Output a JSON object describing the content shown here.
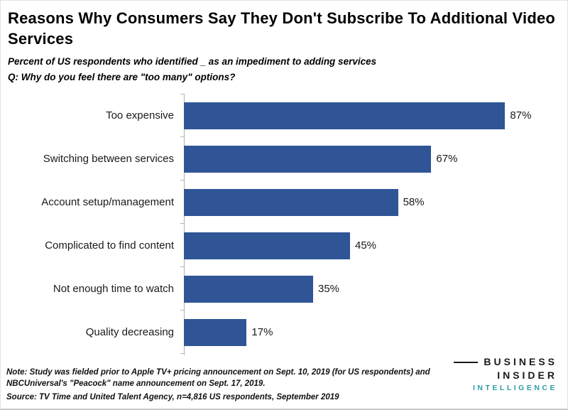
{
  "header": {
    "title": "Reasons Why Consumers Say They Don't Subscribe To Additional Video Services",
    "subtitle1": "Percent of US respondents who identified _ as an impediment to adding services",
    "subtitle2": "Q: Why do you feel there are \"too many\" options?"
  },
  "chart_data": {
    "type": "bar",
    "orientation": "horizontal",
    "title": "Reasons Why Consumers Say They Don't Subscribe To Additional Video Services",
    "xlabel": "",
    "ylabel": "",
    "xlim": [
      0,
      100
    ],
    "grid": false,
    "legend": "none",
    "bar_color": "#2F5597",
    "categories": [
      "Too expensive",
      "Switching between services",
      "Account setup/management",
      "Complicated to find content",
      "Not enough time to watch",
      "Quality decreasing"
    ],
    "values": [
      87,
      67,
      58,
      45,
      35,
      17
    ],
    "value_labels": [
      "87%",
      "67%",
      "58%",
      "45%",
      "35%",
      "17%"
    ]
  },
  "footer": {
    "note": "Note: Study was fielded prior to Apple TV+ pricing announcement on Sept. 10, 2019 (for US respondents) and NBCUniversal's \"Peacock\" name announcement on Sept. 17, 2019.",
    "source": "Source: TV Time and United Talent Agency, n=4,816 US respondents, September 2019"
  },
  "logo": {
    "word1": "BUSINESS",
    "word2": "INSIDER",
    "word3": "INTELLIGENCE",
    "accent_color": "#2E9DA6"
  }
}
